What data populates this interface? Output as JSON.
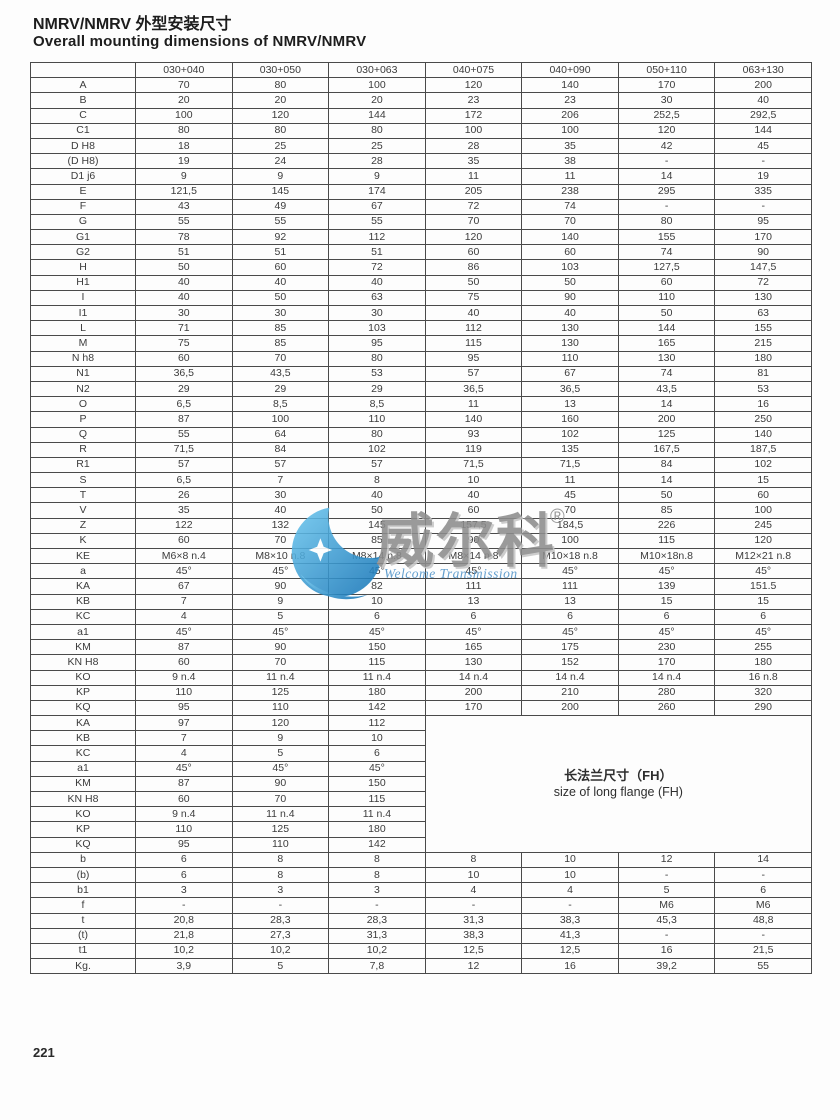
{
  "page": {
    "title_zh": "NMRV/NMRV 外型安装尺寸",
    "title_en": "Overall mounting dimensions of NMRV/NMRV",
    "page_number": "221"
  },
  "watermark": {
    "brand": "威尔科",
    "registered_mark": "®",
    "subtext": "Welcome Transmission",
    "blue": "#2f9fd8",
    "gray": "#8d8d8d"
  },
  "table": {
    "columns": [
      "",
      "030+040",
      "030+050",
      "030+063",
      "040+075",
      "040+090",
      "050+110",
      "063+130"
    ],
    "sections": [
      {
        "name": "main-dimensions",
        "rows": [
          {
            "label": "A",
            "values": [
              "70",
              "80",
              "100",
              "120",
              "140",
              "170",
              "200"
            ]
          },
          {
            "label": "B",
            "values": [
              "20",
              "20",
              "20",
              "23",
              "23",
              "30",
              "40"
            ]
          },
          {
            "label": "C",
            "values": [
              "100",
              "120",
              "144",
              "172",
              "206",
              "252,5",
              "292,5"
            ]
          },
          {
            "label": "C1",
            "values": [
              "80",
              "80",
              "80",
              "100",
              "100",
              "120",
              "144"
            ]
          },
          {
            "label": "D H8",
            "values": [
              "18",
              "25",
              "25",
              "28",
              "35",
              "42",
              "45"
            ]
          },
          {
            "label": "(D H8)",
            "values": [
              "19",
              "24",
              "28",
              "35",
              "38",
              "-",
              "-"
            ]
          },
          {
            "label": "D1 j6",
            "values": [
              "9",
              "9",
              "9",
              "11",
              "11",
              "14",
              "19"
            ]
          },
          {
            "label": "E",
            "values": [
              "121,5",
              "145",
              "174",
              "205",
              "238",
              "295",
              "335"
            ]
          },
          {
            "label": "F",
            "values": [
              "43",
              "49",
              "67",
              "72",
              "74",
              "-",
              "-"
            ]
          },
          {
            "label": "G",
            "values": [
              "55",
              "55",
              "55",
              "70",
              "70",
              "80",
              "95"
            ]
          },
          {
            "label": "G1",
            "values": [
              "78",
              "92",
              "112",
              "120",
              "140",
              "155",
              "170"
            ]
          },
          {
            "label": "G2",
            "values": [
              "51",
              "51",
              "51",
              "60",
              "60",
              "74",
              "90"
            ]
          },
          {
            "label": "H",
            "values": [
              "50",
              "60",
              "72",
              "86",
              "103",
              "127,5",
              "147,5"
            ]
          },
          {
            "label": "H1",
            "values": [
              "40",
              "40",
              "40",
              "50",
              "50",
              "60",
              "72"
            ]
          },
          {
            "label": "I",
            "values": [
              "40",
              "50",
              "63",
              "75",
              "90",
              "110",
              "130"
            ]
          },
          {
            "label": "I1",
            "values": [
              "30",
              "30",
              "30",
              "40",
              "40",
              "50",
              "63"
            ]
          },
          {
            "label": "L",
            "values": [
              "71",
              "85",
              "103",
              "112",
              "130",
              "144",
              "155"
            ]
          },
          {
            "label": "M",
            "values": [
              "75",
              "85",
              "95",
              "115",
              "130",
              "165",
              "215"
            ]
          },
          {
            "label": "N h8",
            "values": [
              "60",
              "70",
              "80",
              "95",
              "110",
              "130",
              "180"
            ]
          },
          {
            "label": "N1",
            "values": [
              "36,5",
              "43,5",
              "53",
              "57",
              "67",
              "74",
              "81"
            ]
          },
          {
            "label": "N2",
            "values": [
              "29",
              "29",
              "29",
              "36,5",
              "36,5",
              "43,5",
              "53"
            ]
          },
          {
            "label": "O",
            "values": [
              "6,5",
              "8,5",
              "8,5",
              "11",
              "13",
              "14",
              "16"
            ]
          },
          {
            "label": "P",
            "values": [
              "87",
              "100",
              "110",
              "140",
              "160",
              "200",
              "250"
            ]
          },
          {
            "label": "Q",
            "values": [
              "55",
              "64",
              "80",
              "93",
              "102",
              "125",
              "140"
            ]
          },
          {
            "label": "R",
            "values": [
              "71,5",
              "84",
              "102",
              "119",
              "135",
              "167,5",
              "187,5"
            ]
          },
          {
            "label": "R1",
            "values": [
              "57",
              "57",
              "57",
              "71,5",
              "71,5",
              "84",
              "102"
            ]
          },
          {
            "label": "S",
            "values": [
              "6,5",
              "7",
              "8",
              "10",
              "11",
              "14",
              "15"
            ]
          },
          {
            "label": "T",
            "values": [
              "26",
              "30",
              "40",
              "40",
              "45",
              "50",
              "60"
            ]
          },
          {
            "label": "V",
            "values": [
              "35",
              "40",
              "50",
              "60",
              "70",
              "85",
              "100"
            ]
          },
          {
            "label": "Z",
            "values": [
              "122",
              "132",
              "145",
              "157,5",
              "184,5",
              "226",
              "245"
            ]
          },
          {
            "label": "K",
            "values": [
              "60",
              "70",
              "85",
              "90",
              "100",
              "115",
              "120"
            ]
          },
          {
            "label": "KE",
            "values": [
              "M6×8 n.4",
              "M8×10 n.8",
              "M8×14 n.8",
              "M8×14 n.8",
              "M10×18 n.8",
              "M10×18n.8",
              "M12×21 n.8"
            ]
          },
          {
            "label": "a",
            "values": [
              "45°",
              "45°",
              "45°",
              "45°",
              "45°",
              "45°",
              "45°"
            ]
          },
          {
            "label": "KA",
            "values": [
              "67",
              "90",
              "82",
              "111",
              "111",
              "139",
              "151.5"
            ]
          },
          {
            "label": "KB",
            "values": [
              "7",
              "9",
              "10",
              "13",
              "13",
              "15",
              "15"
            ]
          },
          {
            "label": "KC",
            "values": [
              "4",
              "5",
              "6",
              "6",
              "6",
              "6",
              "6"
            ]
          },
          {
            "label": "a1",
            "values": [
              "45°",
              "45°",
              "45°",
              "45°",
              "45°",
              "45°",
              "45°"
            ]
          },
          {
            "label": "KM",
            "values": [
              "87",
              "90",
              "150",
              "165",
              "175",
              "230",
              "255"
            ]
          },
          {
            "label": "KN H8",
            "values": [
              "60",
              "70",
              "115",
              "130",
              "152",
              "170",
              "180"
            ]
          },
          {
            "label": "KO",
            "values": [
              "9 n.4",
              "11 n.4",
              "11 n.4",
              "14 n.4",
              "14 n.4",
              "14 n.4",
              "16 n.8"
            ]
          },
          {
            "label": "KP",
            "values": [
              "110",
              "125",
              "180",
              "200",
              "210",
              "280",
              "320"
            ]
          },
          {
            "label": "KQ",
            "values": [
              "95",
              "110",
              "142",
              "170",
              "200",
              "260",
              "290"
            ]
          }
        ]
      },
      {
        "name": "long-flange",
        "note_zh": "长法兰尺寸（FH）",
        "note_en": "size of long flange (FH)",
        "rows": [
          {
            "label": "KA",
            "values": [
              "97",
              "120",
              "112"
            ]
          },
          {
            "label": "KB",
            "values": [
              "7",
              "9",
              "10"
            ]
          },
          {
            "label": "KC",
            "values": [
              "4",
              "5",
              "6"
            ]
          },
          {
            "label": "a1",
            "values": [
              "45°",
              "45°",
              "45°"
            ]
          },
          {
            "label": "KM",
            "values": [
              "87",
              "90",
              "150"
            ]
          },
          {
            "label": "KN H8",
            "values": [
              "60",
              "70",
              "115"
            ]
          },
          {
            "label": "KO",
            "values": [
              "9 n.4",
              "11 n.4",
              "11 n.4"
            ]
          },
          {
            "label": "KP",
            "values": [
              "110",
              "125",
              "180"
            ]
          },
          {
            "label": "KQ",
            "values": [
              "95",
              "110",
              "142"
            ]
          }
        ]
      },
      {
        "name": "key-dimensions",
        "rows": [
          {
            "label": "b",
            "values": [
              "6",
              "8",
              "8",
              "8",
              "10",
              "12",
              "14"
            ]
          },
          {
            "label": "(b)",
            "values": [
              "6",
              "8",
              "8",
              "10",
              "10",
              "-",
              "-"
            ]
          },
          {
            "label": "b1",
            "values": [
              "3",
              "3",
              "3",
              "4",
              "4",
              "5",
              "6"
            ]
          },
          {
            "label": "f",
            "values": [
              "-",
              "-",
              "-",
              "-",
              "-",
              "M6",
              "M6"
            ]
          },
          {
            "label": "t",
            "values": [
              "20,8",
              "28,3",
              "28,3",
              "31,3",
              "38,3",
              "45,3",
              "48,8"
            ]
          },
          {
            "label": "(t)",
            "values": [
              "21,8",
              "27,3",
              "31,3",
              "38,3",
              "41,3",
              "-",
              "-"
            ]
          },
          {
            "label": "t1",
            "values": [
              "10,2",
              "10,2",
              "10,2",
              "12,5",
              "12,5",
              "16",
              "21,5"
            ]
          },
          {
            "label": "Kg.",
            "values": [
              "3,9",
              "5",
              "7,8",
              "12",
              "16",
              "39,2",
              "55"
            ]
          }
        ]
      }
    ]
  }
}
